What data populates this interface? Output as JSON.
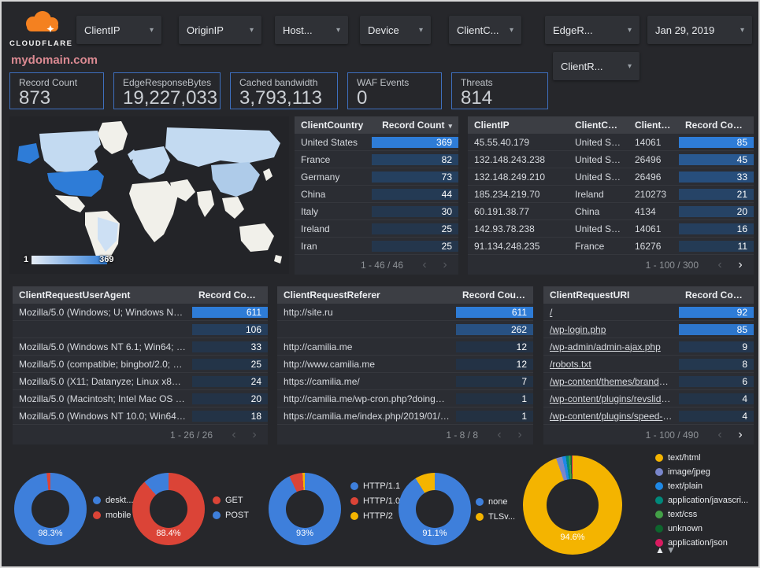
{
  "topbar": {
    "logo_text": "CLOUDFLARE",
    "filters": [
      {
        "label": "ClientIP"
      },
      {
        "label": "OriginIP"
      },
      {
        "label": "Host..."
      },
      {
        "label": "Device"
      },
      {
        "label": "ClientC..."
      },
      {
        "label": "EdgeR..."
      }
    ],
    "date_filter": "Jan 29, 2019",
    "filter_row2": "ClientR..."
  },
  "page_title": "mydomain.com",
  "scorecards": [
    {
      "label": "Record Count",
      "value": "873"
    },
    {
      "label": "EdgeResponseBytes",
      "value": "19,227,033"
    },
    {
      "label": "Cached bandwidth",
      "value": "3,793,113"
    },
    {
      "label": "WAF Events",
      "value": "0"
    },
    {
      "label": "Threats",
      "value": "814"
    }
  ],
  "map": {
    "legend_min": "1",
    "legend_max": "369"
  },
  "colors": {
    "accent_blue": "#2e7cd7",
    "heat_low": "#233142",
    "heat_high": "#2e7cd7",
    "score_border": "#3e6fbe",
    "title_pink": "#db8a92"
  },
  "tables": {
    "country": {
      "columns": [
        "ClientCountry",
        "Record Count"
      ],
      "rows": [
        [
          "United States",
          369
        ],
        [
          "France",
          82
        ],
        [
          "Germany",
          73
        ],
        [
          "China",
          44
        ],
        [
          "Italy",
          30
        ],
        [
          "Ireland",
          25
        ],
        [
          "Iran",
          25
        ]
      ],
      "pagination": "1 - 46 / 46",
      "prev_enabled": false,
      "next_enabled": false,
      "links": false
    },
    "ip": {
      "columns": [
        "ClientIP",
        "ClientCountry",
        "ClientASN",
        "Record Count"
      ],
      "rows": [
        [
          "45.55.40.179",
          "United States",
          "14061",
          85
        ],
        [
          "132.148.243.238",
          "United States",
          "26496",
          45
        ],
        [
          "132.148.249.210",
          "United States",
          "26496",
          33
        ],
        [
          "185.234.219.70",
          "Ireland",
          "210273",
          21
        ],
        [
          "60.191.38.77",
          "China",
          "4134",
          20
        ],
        [
          "142.93.78.238",
          "United States",
          "14061",
          16
        ],
        [
          "91.134.248.235",
          "France",
          "16276",
          11
        ]
      ],
      "pagination": "1 - 100 / 300",
      "prev_enabled": false,
      "next_enabled": true,
      "links": false
    },
    "ua": {
      "columns": [
        "ClientRequestUserAgent",
        "Record Count"
      ],
      "rows": [
        [
          "Mozilla/5.0 (Windows; U; Windows NT 5.1; en-U...",
          611
        ],
        [
          "",
          106
        ],
        [
          "Mozilla/5.0 (Windows NT 6.1; Win64; x64; rv:64...",
          33
        ],
        [
          "Mozilla/5.0 (compatible; bingbot/2.0; +http://w...",
          25
        ],
        [
          "Mozilla/5.0 (X11; Datanyze; Linux x86_64) Appl...",
          24
        ],
        [
          "Mozilla/5.0 (Macintosh; Intel Mac OS X 10.11; r...",
          20
        ],
        [
          "Mozilla/5.0 (Windows NT 10.0; Win64; x64) App...",
          18
        ]
      ],
      "pagination": "1 - 26 / 26",
      "prev_enabled": false,
      "next_enabled": false,
      "links": false
    },
    "ref": {
      "columns": [
        "ClientRequestReferer",
        "Record Count"
      ],
      "rows": [
        [
          "http://site.ru",
          611
        ],
        [
          "",
          262
        ],
        [
          "http://camilia.me",
          12
        ],
        [
          "http://www.camilia.me",
          12
        ],
        [
          "https://camilia.me/",
          7
        ],
        [
          "http://camilia.me/wp-cron.php?doing_wp_cron...",
          1
        ],
        [
          "https://camilia.me/index.php/2019/01/26/stor...",
          1
        ]
      ],
      "pagination": "1 - 8 / 8",
      "prev_enabled": false,
      "next_enabled": false,
      "links": false
    },
    "uri": {
      "columns": [
        "ClientRequestURI",
        "Record Count"
      ],
      "rows": [
        [
          "/",
          92
        ],
        [
          "/wp-login.php",
          85
        ],
        [
          "/wp-admin/admin-ajax.php",
          9
        ],
        [
          "/robots.txt",
          8
        ],
        [
          "/wp-content/themes/brandon/plu...",
          6
        ],
        [
          "/wp-content/plugins/revslider/rs-p...",
          4
        ],
        [
          "/wp-content/plugins/speed-booste...",
          4
        ]
      ],
      "pagination": "1 - 100 / 490",
      "prev_enabled": false,
      "next_enabled": true,
      "links": true
    }
  },
  "donuts": [
    {
      "name": "device-type",
      "type": "pie",
      "label": "98.3%",
      "slices": [
        {
          "name": "deskt...",
          "value": 98.3,
          "color": "#3e7fdb"
        },
        {
          "name": "mobile",
          "value": 1.7,
          "color": "#db4437"
        }
      ]
    },
    {
      "name": "http-method",
      "type": "pie",
      "label": "88.4%",
      "slices": [
        {
          "name": "GET",
          "value": 88.4,
          "color": "#db4437"
        },
        {
          "name": "POST",
          "value": 11.6,
          "color": "#3e7fdb"
        }
      ]
    },
    {
      "name": "http-version",
      "type": "pie",
      "label": "93%",
      "slices": [
        {
          "name": "HTTP/1.1",
          "value": 93,
          "color": "#3e7fdb"
        },
        {
          "name": "HTTP/1.0",
          "value": 6,
          "color": "#db4437"
        },
        {
          "name": "HTTP/2",
          "value": 1,
          "color": "#f4b400"
        }
      ]
    },
    {
      "name": "tls-version",
      "type": "pie",
      "label": "91.1%",
      "slices": [
        {
          "name": "none",
          "value": 91.1,
          "color": "#3e7fdb"
        },
        {
          "name": "TLSv...",
          "value": 8.9,
          "color": "#f4b400"
        }
      ]
    },
    {
      "name": "content-type",
      "type": "pie",
      "label": "94.6%",
      "slices": [
        {
          "name": "text/html",
          "value": 94.6,
          "color": "#f4b400"
        },
        {
          "name": "image/jpeg",
          "value": 2.0,
          "color": "#7986cb"
        },
        {
          "name": "text/plain",
          "value": 1.2,
          "color": "#1e88e5"
        },
        {
          "name": "application/javascri...",
          "value": 0.9,
          "color": "#00897b"
        },
        {
          "name": "text/css",
          "value": 0.6,
          "color": "#43a047"
        },
        {
          "name": "unknown",
          "value": 0.4,
          "color": "#0d652d"
        },
        {
          "name": "application/json",
          "value": 0.3,
          "color": "#d81b60"
        }
      ]
    }
  ]
}
